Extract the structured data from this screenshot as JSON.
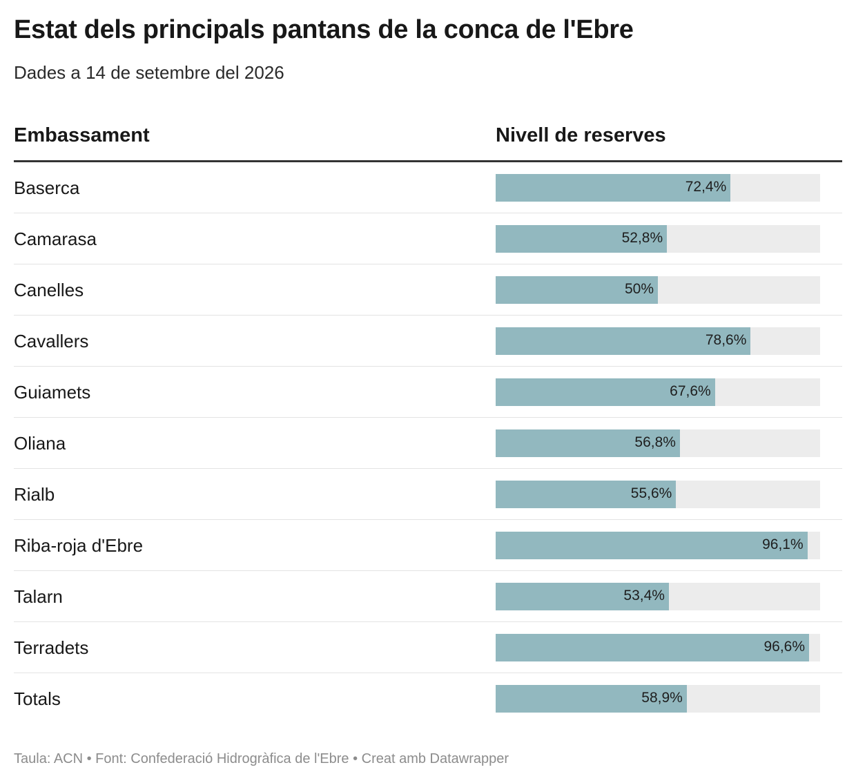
{
  "title": "Estat dels principals pantans de la conca de l'Ebre",
  "subtitle": "Dades a 14 de setembre del 2026",
  "header": {
    "col1": "Embassament",
    "col2": "Nivell de reserves"
  },
  "footer": "Taula: ACN • Font: Confederació Hidrogràfica de l'Ebre • Creat amb Datawrapper",
  "colors": {
    "bar": "#92b8bf",
    "track": "#ececec"
  },
  "chart_data": {
    "type": "table",
    "categories": [
      "Baserca",
      "Camarasa",
      "Canelles",
      "Cavallers",
      "Guiamets",
      "Oliana",
      "Rialb",
      "Riba-roja d'Ebre",
      "Talarn",
      "Terradets",
      "Totals"
    ],
    "values": [
      72.4,
      52.8,
      50,
      78.6,
      67.6,
      56.8,
      55.6,
      96.1,
      53.4,
      96.6,
      58.9
    ],
    "labels": [
      "72,4%",
      "52,8%",
      "50%",
      "78,6%",
      "67,6%",
      "56,8%",
      "55,6%",
      "96,1%",
      "53,4%",
      "96,6%",
      "58,9%"
    ],
    "ylim": [
      0,
      100
    ]
  }
}
